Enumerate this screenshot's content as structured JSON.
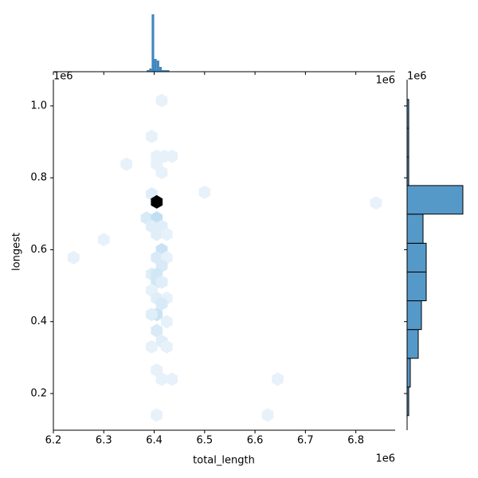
{
  "chart_data": [
    {
      "type": "hexbin",
      "x_label": "total_length",
      "y_label": "longest",
      "x_offset": "1e6",
      "y_offset": "1e6",
      "x": [
        6415000,
        6395000,
        6405000,
        6420000,
        6435000,
        6345000,
        6405000,
        6415000,
        6500000,
        6395000,
        6405000,
        6385000,
        6405000,
        6395000,
        6415000,
        6405000,
        6425000,
        6300000,
        6240000,
        6415000,
        6405000,
        6425000,
        6415000,
        6395000,
        6405000,
        6405000,
        6415000,
        6395000,
        6405000,
        6425000,
        6415000,
        6405000,
        6395000,
        6425000,
        6405000,
        6415000,
        6395000,
        6425000,
        6405000,
        6415000,
        6435000,
        6645000,
        6405000,
        6625000,
        6840000
      ],
      "y": [
        1015000,
        915000,
        860000,
        860000,
        860000,
        838000,
        838000,
        815000,
        760000,
        755000,
        733000,
        688000,
        688000,
        665000,
        665000,
        643000,
        643000,
        628000,
        578000,
        600000,
        578000,
        578000,
        555000,
        532000,
        510000,
        532000,
        510000,
        487000,
        465000,
        465000,
        450000,
        420000,
        420000,
        400000,
        375000,
        345000,
        330000,
        330000,
        265000,
        240000,
        240000,
        240000,
        140000,
        140000,
        730000
      ],
      "values": [
        1,
        1,
        1,
        1,
        1,
        1,
        1,
        1,
        1,
        2,
        30,
        3,
        6,
        2,
        2,
        2,
        1,
        1,
        1,
        5,
        3,
        1,
        3,
        2,
        4,
        4,
        2,
        1,
        2,
        1,
        3,
        5,
        2,
        1,
        3,
        2,
        1,
        1,
        1,
        1,
        1,
        1,
        1,
        1,
        1
      ],
      "colors": [
        "#eef5fb",
        "#b6daf1",
        "#6aaedc",
        "#1f4e6e",
        "#000000"
      ],
      "xlim": [
        6200000,
        6878000
      ],
      "ylim": [
        98000,
        1073000
      ],
      "xticks": [
        {
          "value": 6200000,
          "label": "6.2"
        },
        {
          "value": 6300000,
          "label": "6.3"
        },
        {
          "value": 6400000,
          "label": "6.4"
        },
        {
          "value": 6500000,
          "label": "6.5"
        },
        {
          "value": 6600000,
          "label": "6.6"
        },
        {
          "value": 6700000,
          "label": "6.7"
        },
        {
          "value": 6800000,
          "label": "6.8"
        }
      ],
      "yticks": [
        {
          "value": 200000,
          "label": "0.2"
        },
        {
          "value": 400000,
          "label": "0.4"
        },
        {
          "value": 600000,
          "label": "0.6"
        },
        {
          "value": 800000,
          "label": "0.8"
        },
        {
          "value": 1000000,
          "label": "1.0"
        }
      ]
    },
    {
      "type": "histogram",
      "orientation": "vertical",
      "x_offset": "1e6",
      "color": "#3f87bf",
      "bins": [
        6385000,
        6390000,
        6395000,
        6400000,
        6405000,
        6410000,
        6415000,
        6420000,
        6425000,
        6430000,
        6435000
      ],
      "values": [
        1,
        2,
        36,
        8,
        7,
        3,
        1,
        1,
        1,
        0
      ],
      "ylim": [
        0,
        37
      ]
    },
    {
      "type": "histogram",
      "orientation": "horizontal",
      "y_offset": "1e6",
      "color": "#5599c8",
      "bins": [
        138500,
        218000,
        298000,
        378000,
        458000,
        538000,
        618000,
        699000,
        778500,
        858000,
        938000,
        1018000
      ],
      "values": [
        1,
        2,
        7,
        9,
        12,
        12,
        10,
        35,
        1,
        1,
        1
      ],
      "xlim": [
        0,
        36
      ]
    }
  ]
}
